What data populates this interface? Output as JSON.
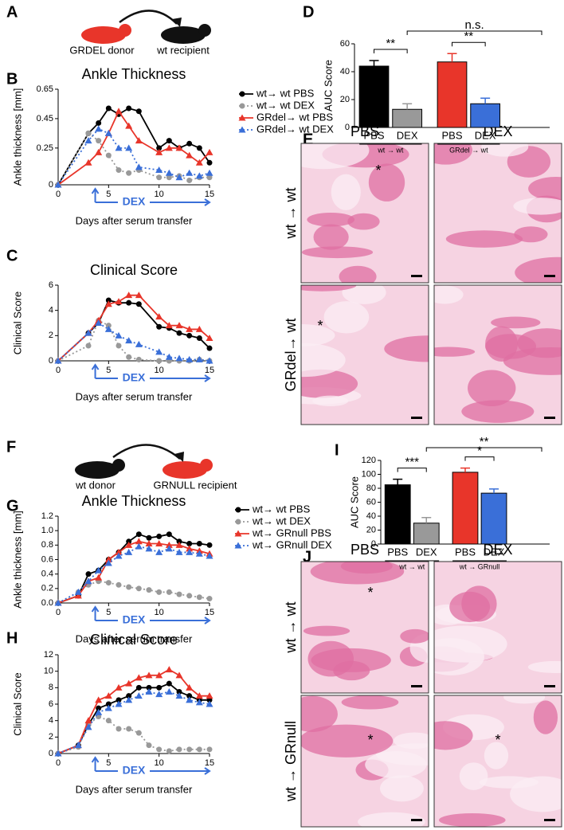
{
  "chart_data": [
    {
      "panel": "B",
      "type": "line",
      "title": "Ankle Thickness",
      "ylabel": "Ankle thickness [mm]",
      "xlabel": "Days after serum transfer",
      "annotation": "DEX",
      "x": [
        0,
        3,
        4,
        5,
        6,
        7,
        8,
        10,
        11,
        12,
        13,
        14,
        15
      ],
      "xlim": [
        0,
        15
      ],
      "xticks": [
        0,
        5,
        10,
        15
      ],
      "ylim": [
        0,
        0.65
      ],
      "yticks": [
        0,
        0.25,
        0.45,
        0.65
      ],
      "legend": true,
      "series": [
        {
          "name": "wt→ wt PBS",
          "color": "#000000",
          "linestyle": "solid",
          "marker": "circle",
          "values": [
            0,
            0.35,
            0.42,
            0.52,
            0.48,
            0.52,
            0.5,
            0.25,
            0.3,
            0.25,
            0.28,
            0.25,
            0.15
          ]
        },
        {
          "name": "wt→ wt DEX",
          "color": "#999999",
          "linestyle": "dotted",
          "marker": "circle",
          "values": [
            0,
            0.35,
            0.3,
            0.2,
            0.1,
            0.08,
            0.1,
            0.05,
            0.05,
            0.06,
            0.03,
            0.05,
            0.05
          ]
        },
        {
          "name": "GRdel→ wt PBS",
          "color": "#e8352a",
          "linestyle": "solid",
          "marker": "triangle",
          "values": [
            0,
            0.15,
            0.22,
            0.35,
            0.5,
            0.4,
            0.3,
            0.22,
            0.25,
            0.25,
            0.2,
            0.15,
            0.22
          ]
        },
        {
          "name": "GRdel→ wt DEX",
          "color": "#3a6fd8",
          "linestyle": "dotted",
          "marker": "triangle",
          "values": [
            0,
            0.3,
            0.38,
            0.35,
            0.25,
            0.25,
            0.12,
            0.1,
            0.08,
            0.05,
            0.08,
            0.06,
            0.08
          ]
        }
      ]
    },
    {
      "panel": "C",
      "type": "line",
      "title": "Clinical Score",
      "ylabel": "Clinical Score",
      "xlabel": "Days after serum transfer",
      "annotation": "DEX",
      "x": [
        0,
        3,
        4,
        5,
        6,
        7,
        8,
        10,
        11,
        12,
        13,
        14,
        15
      ],
      "xlim": [
        0,
        15
      ],
      "xticks": [
        0,
        5,
        10,
        15
      ],
      "ylim": [
        0,
        6
      ],
      "yticks": [
        0,
        2,
        4,
        6
      ],
      "legend": false,
      "series": [
        {
          "color": "#000000",
          "linestyle": "solid",
          "marker": "circle",
          "values": [
            0,
            2.2,
            3,
            4.8,
            4.6,
            4.6,
            4.5,
            2.7,
            2.6,
            2.2,
            2,
            1.8,
            1
          ]
        },
        {
          "color": "#999999",
          "linestyle": "dotted",
          "marker": "circle",
          "values": [
            0,
            1.2,
            3.2,
            2.8,
            1.2,
            0.3,
            0.1,
            0,
            0,
            0,
            0,
            0.1,
            0
          ]
        },
        {
          "color": "#e8352a",
          "linestyle": "solid",
          "marker": "triangle",
          "values": [
            0,
            2.2,
            3.2,
            4.5,
            4.7,
            5.2,
            5.2,
            3.5,
            2.8,
            2.8,
            2.5,
            2.5,
            1.8
          ]
        },
        {
          "color": "#3a6fd8",
          "linestyle": "dotted",
          "marker": "triangle",
          "values": [
            0,
            2.2,
            3,
            2.5,
            2,
            1.6,
            1.3,
            0.7,
            0.3,
            0.2,
            0.1,
            0.1,
            0
          ]
        }
      ]
    },
    {
      "panel": "D",
      "type": "bar",
      "ylabel": "AUC Score",
      "categories": [
        "PBS",
        "DEX",
        "PBS",
        "DEX"
      ],
      "groups": [
        "wt → wt",
        "GRdel → wt"
      ],
      "values": [
        44,
        13,
        47,
        17
      ],
      "errors": [
        4,
        4,
        6,
        4
      ],
      "colors": [
        "#000000",
        "#999999",
        "#e8352a",
        "#3a6fd8"
      ],
      "ylim": [
        0,
        60
      ],
      "yticks": [
        0,
        20,
        40,
        60
      ],
      "significance": [
        "**",
        "n.s.",
        "**"
      ]
    },
    {
      "panel": "G",
      "type": "line",
      "title": "Ankle Thickness",
      "ylabel": "Ankle thickness [mm]",
      "xlabel": "Days after serum transfer",
      "annotation": "DEX",
      "x": [
        0,
        2,
        3,
        4,
        5,
        6,
        7,
        8,
        9,
        10,
        11,
        12,
        13,
        14,
        15
      ],
      "xlim": [
        0,
        15
      ],
      "xticks": [
        0,
        5,
        10,
        15
      ],
      "ylim": [
        0,
        1.2
      ],
      "yticks": [
        {
          "value": 0,
          "label": "0.0"
        },
        0.2,
        0.4,
        0.6,
        0.8,
        {
          "value": 1,
          "label": "1.0"
        },
        1.2
      ],
      "legend": true,
      "series": [
        {
          "name": "wt→ wt PBS",
          "color": "#000000",
          "linestyle": "solid",
          "marker": "circle",
          "values": [
            0,
            0.1,
            0.4,
            0.45,
            0.6,
            0.7,
            0.85,
            0.95,
            0.9,
            0.92,
            0.95,
            0.85,
            0.82,
            0.82,
            0.8
          ]
        },
        {
          "name": "wt→ wt DEX",
          "color": "#999999",
          "linestyle": "dotted",
          "marker": "circle",
          "values": [
            0,
            0.15,
            0.25,
            0.3,
            0.28,
            0.25,
            0.22,
            0.2,
            0.18,
            0.15,
            0.15,
            0.12,
            0.1,
            0.08,
            0.06
          ]
        },
        {
          "name": "wt→ GRnull PBS",
          "color": "#e8352a",
          "linestyle": "solid",
          "marker": "triangle",
          "values": [
            0,
            0.1,
            0.3,
            0.35,
            0.6,
            0.7,
            0.8,
            0.85,
            0.82,
            0.82,
            0.8,
            0.8,
            0.75,
            0.72,
            0.68
          ]
        },
        {
          "name": "wt→ GRnull DEX",
          "color": "#3a6fd8",
          "linestyle": "dotted",
          "marker": "triangle",
          "values": [
            0,
            0.15,
            0.3,
            0.45,
            0.55,
            0.65,
            0.7,
            0.78,
            0.75,
            0.7,
            0.75,
            0.7,
            0.7,
            0.68,
            0.65
          ]
        }
      ]
    },
    {
      "panel": "H",
      "type": "line",
      "title": "Clinical Score",
      "ylabel": "Clinical Score",
      "xlabel": "Days after serum transfer",
      "annotation": "DEX",
      "x": [
        0,
        2,
        3,
        4,
        5,
        6,
        7,
        8,
        9,
        10,
        11,
        12,
        13,
        14,
        15
      ],
      "xlim": [
        0,
        15
      ],
      "xticks": [
        0,
        5,
        10,
        15
      ],
      "ylim": [
        0,
        12
      ],
      "yticks": [
        0,
        2,
        4,
        6,
        8,
        10,
        12
      ],
      "legend": false,
      "series": [
        {
          "color": "#000000",
          "linestyle": "solid",
          "marker": "circle",
          "values": [
            0,
            1,
            3.5,
            5.5,
            6,
            6.5,
            7,
            8,
            8,
            8,
            8.5,
            7.5,
            7,
            6.5,
            6.5
          ]
        },
        {
          "color": "#999999",
          "linestyle": "dotted",
          "marker": "circle",
          "values": [
            0,
            0.8,
            3.5,
            4.5,
            4,
            3,
            3,
            2.5,
            1,
            0.5,
            0.3,
            0.5,
            0.5,
            0.5,
            0.5
          ]
        },
        {
          "color": "#e8352a",
          "linestyle": "solid",
          "marker": "triangle",
          "values": [
            0,
            1,
            4,
            6.5,
            7,
            8,
            8.5,
            9.2,
            9.5,
            9.5,
            10.2,
            9.5,
            8,
            7,
            7
          ]
        },
        {
          "color": "#3a6fd8",
          "linestyle": "dotted",
          "marker": "triangle",
          "values": [
            0,
            1,
            3.2,
            5,
            5.5,
            6,
            6.5,
            7,
            7.5,
            7.2,
            7.5,
            7,
            6.5,
            6.2,
            6
          ]
        }
      ]
    },
    {
      "panel": "I",
      "type": "bar",
      "ylabel": "AUC Score",
      "categories": [
        "PBS",
        "DEX",
        "PBS",
        "DEX"
      ],
      "groups": [
        "wt → wt",
        "wt → GRnull"
      ],
      "values": [
        85,
        30,
        103,
        73
      ],
      "errors": [
        8,
        8,
        6,
        6
      ],
      "colors": [
        "#000000",
        "#999999",
        "#e8352a",
        "#3a6fd8"
      ],
      "ylim": [
        0,
        120
      ],
      "yticks": [
        0,
        20,
        40,
        60,
        80,
        100,
        120
      ],
      "significance": [
        "***",
        "**",
        "*"
      ]
    }
  ],
  "figure": {
    "A": {
      "letter": "A",
      "labels": [
        "GRDEL donor",
        "wt recipient"
      ]
    },
    "E": {
      "letter": "E",
      "columns": [
        "PBS",
        "DEX"
      ],
      "rows": [
        "wt → wt",
        "GRdel→ wt"
      ],
      "marker": "*"
    },
    "F": {
      "letter": "F",
      "labels": [
        "wt donor",
        "GRNULL recipient"
      ]
    },
    "J": {
      "letter": "J",
      "columns": [
        "PBS",
        "DEX"
      ],
      "rows": [
        "wt → wt",
        "wt → GRnull"
      ],
      "marker": "*"
    }
  }
}
